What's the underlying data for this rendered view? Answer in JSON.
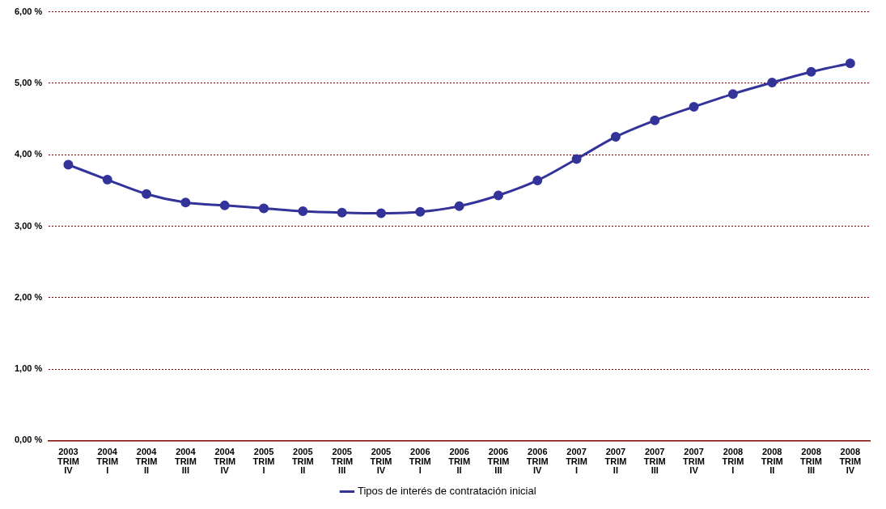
{
  "chart_data": {
    "type": "line",
    "categories": [
      "2003\nTRIM\nIV",
      "2004\nTRIM\nI",
      "2004\nTRIM\nII",
      "2004\nTRIM\nIII",
      "2004\nTRIM\nIV",
      "2005\nTRIM\nI",
      "2005\nTRIM\nII",
      "2005\nTRIM\nIII",
      "2005\nTRIM\nIV",
      "2006\nTRIM\nI",
      "2006\nTRIM\nII",
      "2006\nTRIM\nIII",
      "2006\nTRIM\nIV",
      "2007\nTRIM\nI",
      "2007\nTRIM\nII",
      "2007\nTRIM\nIII",
      "2007\nTRIM\nIV",
      "2008\nTRIM\nI",
      "2008\nTRIM\nII",
      "2008\nTRIM\nIII",
      "2008\nTRIM\nIV"
    ],
    "series": [
      {
        "name": "Tipos de interés de contratación inicial",
        "color": "#333399",
        "values": [
          3.86,
          3.65,
          3.45,
          3.33,
          3.29,
          3.25,
          3.21,
          3.19,
          3.18,
          3.2,
          3.28,
          3.43,
          3.64,
          3.94,
          4.25,
          4.48,
          4.67,
          4.85,
          5.01,
          5.16,
          5.28
        ]
      }
    ],
    "ylim": [
      0,
      6
    ],
    "yticks": [
      {
        "value": 0,
        "label": "0,00 %"
      },
      {
        "value": 1,
        "label": "1,00 %"
      },
      {
        "value": 2,
        "label": "2,00 %"
      },
      {
        "value": 3,
        "label": "3,00 %"
      },
      {
        "value": 4,
        "label": "4,00 %"
      },
      {
        "value": 5,
        "label": "5,00 %"
      },
      {
        "value": 6,
        "label": "6,00 %"
      }
    ],
    "grid": "y",
    "legend": "bottom",
    "marker": "circle",
    "line_style": "solid"
  }
}
